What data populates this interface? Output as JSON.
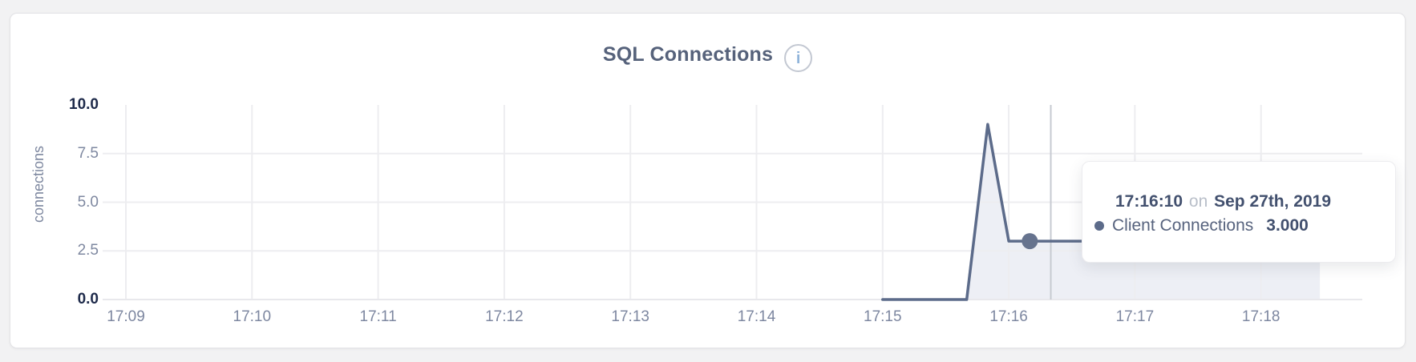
{
  "header": {
    "title": "SQL Connections",
    "info_glyph": "i"
  },
  "tooltip": {
    "time": "17:16:10",
    "conjunction": "on",
    "date": "Sep 27th, 2019",
    "series_label": "Client Connections",
    "value": "3.000",
    "bullet_color": "#5c6b8a"
  },
  "chart_data": {
    "type": "area",
    "title": "SQL Connections",
    "xlabel": "",
    "ylabel": "connections",
    "ylim": [
      0,
      10
    ],
    "grid": true,
    "x_ticks": [
      "17:09",
      "17:10",
      "17:11",
      "17:12",
      "17:13",
      "17:14",
      "17:15",
      "17:16",
      "17:17",
      "17:18"
    ],
    "y_ticks": [
      {
        "label": "10.0",
        "value": 10,
        "strong": true
      },
      {
        "label": "7.5",
        "value": 7.5,
        "strong": false
      },
      {
        "label": "5.0",
        "value": 5,
        "strong": false
      },
      {
        "label": "2.5",
        "value": 2.5,
        "strong": false
      },
      {
        "label": "0.0",
        "value": 0,
        "strong": true
      }
    ],
    "series": [
      {
        "name": "Client Connections",
        "line_color": "#5c6b8a",
        "fill_color": "#edeff5",
        "points": [
          {
            "t": "17:15:00",
            "v": 0
          },
          {
            "t": "17:15:40",
            "v": 0
          },
          {
            "t": "17:15:50",
            "v": 9
          },
          {
            "t": "17:16:00",
            "v": 3
          },
          {
            "t": "17:16:10",
            "v": 3
          },
          {
            "t": "17:18:28",
            "v": 3
          }
        ]
      }
    ],
    "hover": {
      "time": "17:16:10",
      "value": 3,
      "crosshair_time": "17:16:20",
      "marker_color": "#66738e",
      "crosshair_color": "#c7cad1"
    },
    "gridline_color": "#ededf0",
    "baseline_color": "#e8e8ec"
  }
}
